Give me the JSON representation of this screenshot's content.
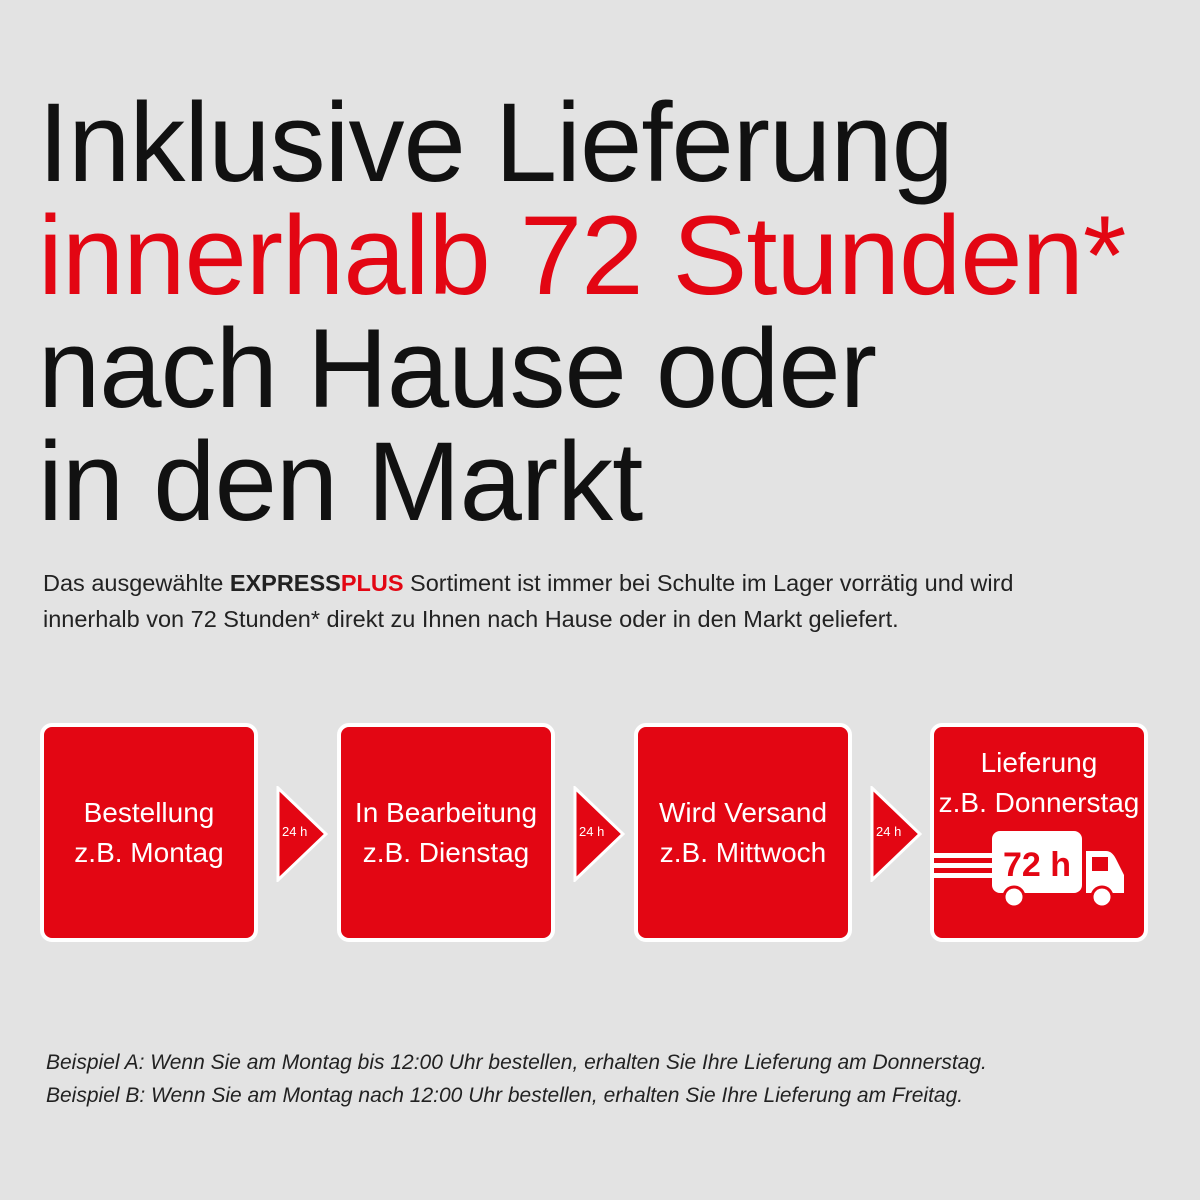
{
  "headline": {
    "line1": "Inklusive Lieferung",
    "line2": "innerhalb 72 Stunden*",
    "line3": "nach Hause oder",
    "line4": "in den Markt"
  },
  "intro": {
    "before": "Das ausgewählte ",
    "brand_express": "EXPRESS",
    "brand_plus": "PLUS",
    "after_line1": " Sortiment ist immer bei Schulte im Lager vorrätig und wird",
    "line2": "innerhalb von 72 Stunden* direkt zu Ihnen nach Hause oder in den Markt geliefert."
  },
  "steps": [
    {
      "title": "Bestellung",
      "sub": "z.B. Montag"
    },
    {
      "title": "In Bearbeitung",
      "sub": "z.B. Dienstag"
    },
    {
      "title": "Wird Versand",
      "sub": "z.B. Mittwoch"
    },
    {
      "title": "Lieferung",
      "sub": "z.B. Donnerstag",
      "truck_label": "72 h"
    }
  ],
  "arrows": [
    "24 h",
    "24 h",
    "24 h"
  ],
  "footer": {
    "example_a": "Beispiel A: Wenn Sie am Montag bis 12:00 Uhr bestellen, erhalten Sie Ihre Lieferung am Donnerstag.",
    "example_b": "Beispiel B: Wenn Sie am Montag nach 12:00 Uhr bestellen, erhalten Sie Ihre Lieferung am Freitag."
  },
  "colors": {
    "accent": "#e30613",
    "background": "#e3e3e3",
    "text": "#111111"
  }
}
